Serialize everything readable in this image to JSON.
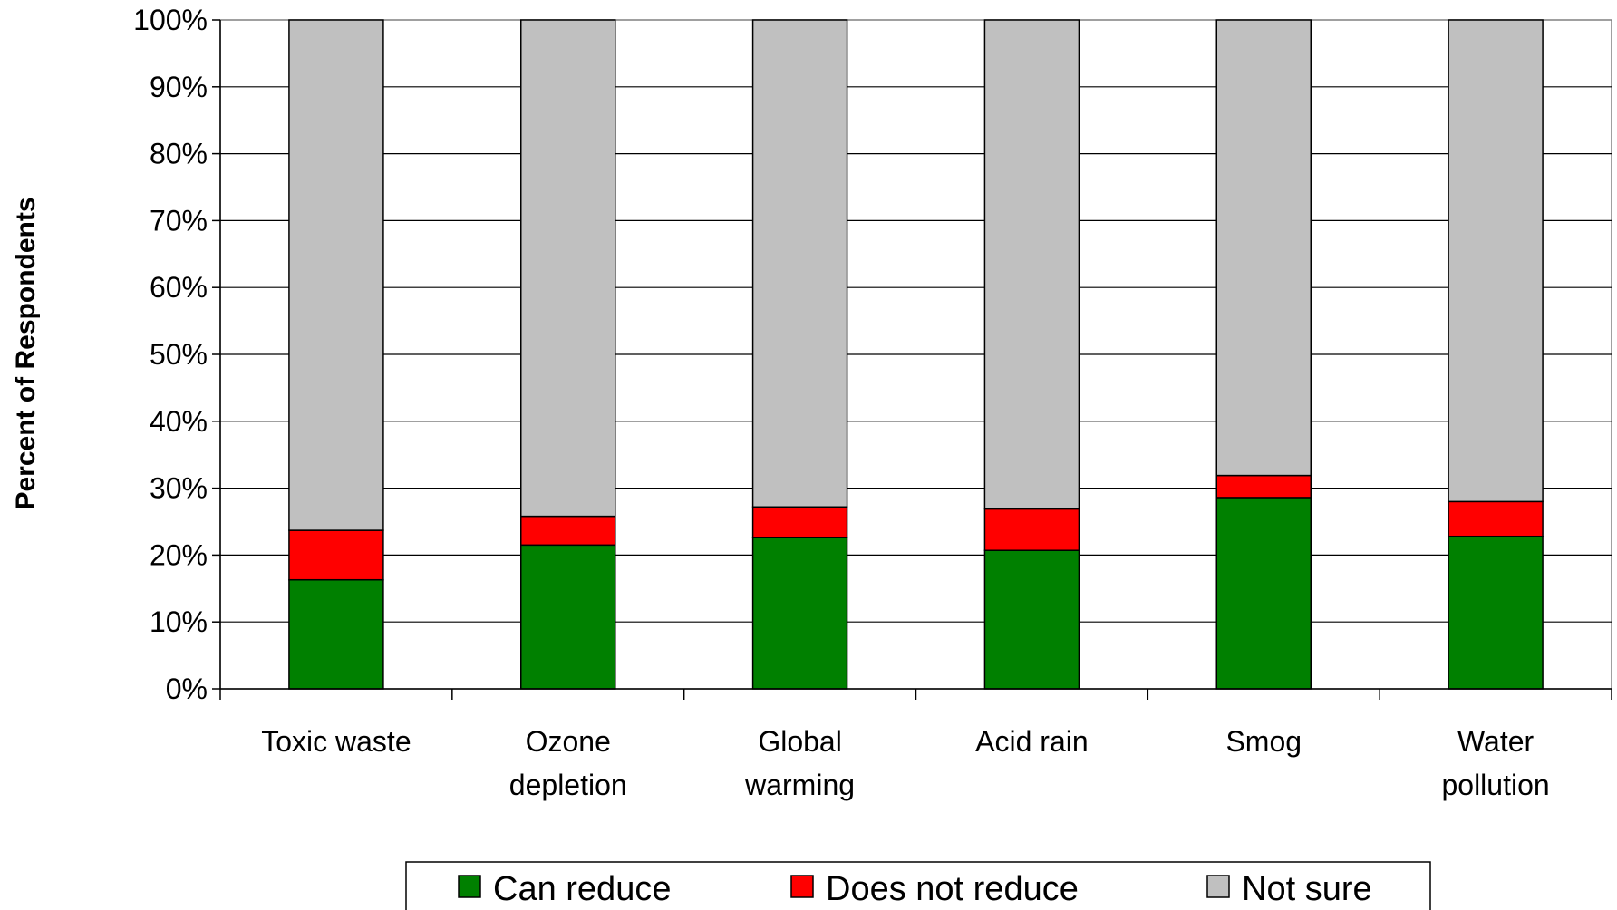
{
  "chart_data": {
    "type": "bar",
    "stacked": true,
    "ylabel": "Percent of Respondents",
    "ylim": [
      0,
      100
    ],
    "y_ticks": [
      "0%",
      "10%",
      "20%",
      "30%",
      "40%",
      "50%",
      "60%",
      "70%",
      "80%",
      "90%",
      "100%"
    ],
    "grid": true,
    "legend_position": "bottom",
    "categories": [
      [
        "Toxic waste"
      ],
      [
        "Ozone",
        "depletion"
      ],
      [
        "Global",
        "warming"
      ],
      [
        "Acid rain"
      ],
      [
        "Smog"
      ],
      [
        "Water",
        "pollution"
      ]
    ],
    "series": [
      {
        "name": "Can reduce",
        "color": "#008000",
        "values": [
          16.3,
          21.5,
          22.6,
          20.7,
          28.6,
          22.8
        ]
      },
      {
        "name": "Does not reduce",
        "color": "#ff0000",
        "values": [
          7.4,
          4.3,
          4.6,
          6.2,
          3.3,
          5.2
        ]
      },
      {
        "name": "Not sure",
        "color": "#c0c0c0",
        "values": [
          76.3,
          74.2,
          72.8,
          73.1,
          68.1,
          72.0
        ]
      }
    ]
  }
}
